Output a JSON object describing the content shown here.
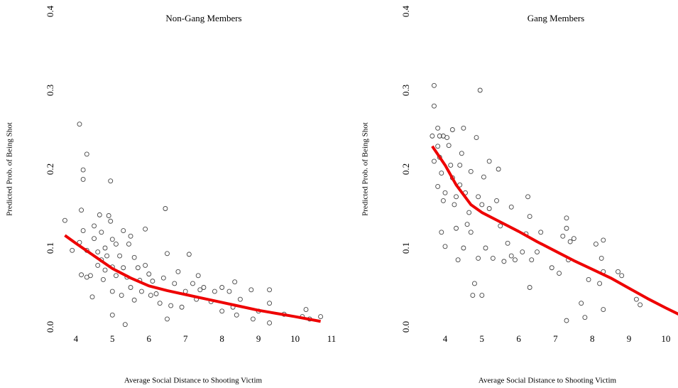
{
  "chart_data": [
    {
      "type": "scatter",
      "title": "Non-Gang Members",
      "xlabel": "Average Social Distance to Shooting Victim",
      "ylabel": "Predicted Prob. of Being Shot",
      "xlim": [
        3.42,
        10.98
      ],
      "ylim": [
        0,
        0.4
      ],
      "xticks": [
        4,
        5,
        6,
        7,
        8,
        9,
        10,
        11
      ],
      "yticks": [
        {
          "value": 0,
          "label": "0.0"
        },
        0.1,
        0.2,
        0.3,
        0.4
      ],
      "grid": false,
      "series": [
        {
          "style": "points",
          "color": "#444444",
          "x": [
            3.7,
            3.9,
            4.1,
            4.15,
            4.2,
            4.2,
            4.3,
            4.1,
            4.2,
            4.3,
            4.15,
            4.3,
            4.4,
            4.45,
            4.5,
            4.5,
            4.6,
            4.6,
            4.65,
            4.7,
            4.7,
            4.75,
            4.8,
            4.8,
            4.85,
            4.9,
            4.95,
            4.95,
            5.0,
            5.0,
            5.0,
            5.0,
            5.1,
            5.1,
            5.2,
            5.25,
            5.3,
            5.3,
            5.35,
            5.4,
            5.45,
            5.5,
            5.5,
            5.6,
            5.6,
            5.7,
            5.75,
            5.8,
            5.9,
            5.9,
            6.0,
            6.05,
            6.1,
            6.2,
            6.3,
            6.4,
            6.45,
            6.5,
            6.5,
            6.6,
            6.7,
            6.8,
            6.9,
            7.0,
            7.1,
            7.2,
            7.3,
            7.35,
            7.4,
            7.5,
            7.7,
            7.8,
            8.0,
            8.0,
            8.2,
            8.3,
            8.35,
            8.4,
            8.5,
            8.8,
            8.85,
            9.0,
            9.3,
            9.3,
            9.3,
            9.7,
            10.2,
            10.3,
            10.4,
            10.7
          ],
          "values": [
            0.135,
            0.097,
            0.257,
            0.148,
            0.199,
            0.187,
            0.219,
            0.107,
            0.122,
            0.097,
            0.066,
            0.063,
            0.065,
            0.038,
            0.128,
            0.112,
            0.095,
            0.078,
            0.142,
            0.12,
            0.085,
            0.06,
            0.1,
            0.072,
            0.09,
            0.141,
            0.185,
            0.134,
            0.111,
            0.076,
            0.045,
            0.015,
            0.105,
            0.065,
            0.09,
            0.04,
            0.122,
            0.075,
            0.003,
            0.063,
            0.105,
            0.115,
            0.05,
            0.088,
            0.034,
            0.075,
            0.059,
            0.045,
            0.124,
            0.078,
            0.067,
            0.04,
            0.058,
            0.042,
            0.03,
            0.062,
            0.15,
            0.093,
            0.01,
            0.027,
            0.055,
            0.07,
            0.025,
            0.045,
            0.092,
            0.055,
            0.035,
            0.065,
            0.047,
            0.05,
            0.032,
            0.045,
            0.05,
            0.02,
            0.045,
            0.025,
            0.057,
            0.015,
            0.035,
            0.047,
            0.01,
            0.02,
            0.047,
            0.03,
            0.005,
            0.016,
            0.013,
            0.022,
            0.01,
            0.013
          ]
        },
        {
          "style": "line",
          "color": "#ee0000",
          "x": [
            3.7,
            4,
            4.5,
            5,
            5.5,
            6,
            6.5,
            7,
            7.5,
            8,
            8.5,
            9,
            9.5,
            10,
            10.7
          ],
          "values": [
            0.116,
            0.106,
            0.09,
            0.074,
            0.062,
            0.052,
            0.046,
            0.041,
            0.036,
            0.031,
            0.026,
            0.021,
            0.017,
            0.013,
            0.007
          ]
        }
      ]
    },
    {
      "type": "scatter",
      "title": "Gang Members",
      "xlabel": "Average Social Distance to Shooting Victim",
      "ylabel": "Predicted Prob. of Being Shot",
      "xlim": [
        3.45,
        10.35
      ],
      "ylim": [
        0,
        0.4
      ],
      "xticks": [
        4,
        5,
        6,
        7,
        8,
        9,
        10
      ],
      "yticks": [
        {
          "value": 0,
          "label": "0.0"
        },
        0.1,
        0.2,
        0.3,
        0.4
      ],
      "grid": false,
      "series": [
        {
          "style": "points",
          "color": "#444444",
          "x": [
            3.65,
            3.7,
            3.8,
            3.85,
            3.95,
            3.7,
            3.7,
            3.8,
            3.8,
            3.85,
            3.9,
            3.95,
            3.9,
            4.0,
            4.0,
            4.05,
            4.1,
            4.15,
            4.2,
            4.2,
            4.25,
            4.3,
            4.3,
            4.35,
            4.4,
            4.4,
            4.45,
            4.5,
            4.5,
            4.55,
            4.6,
            4.65,
            4.7,
            4.7,
            4.75,
            4.8,
            4.85,
            4.9,
            4.9,
            4.95,
            5.0,
            5.0,
            5.05,
            5.1,
            5.2,
            5.2,
            5.3,
            5.4,
            5.45,
            5.5,
            5.6,
            5.7,
            5.8,
            5.8,
            5.9,
            6.1,
            6.2,
            6.25,
            6.3,
            6.3,
            6.35,
            6.5,
            6.6,
            6.9,
            7.1,
            7.2,
            7.3,
            7.3,
            7.35,
            7.3,
            7.4,
            7.5,
            7.7,
            7.8,
            7.9,
            8.1,
            8.2,
            8.25,
            8.3,
            8.3,
            8.3,
            8.7,
            8.8,
            9.2,
            9.3
          ],
          "values": [
            0.242,
            0.21,
            0.178,
            0.242,
            0.242,
            0.306,
            0.28,
            0.252,
            0.229,
            0.215,
            0.195,
            0.16,
            0.12,
            0.102,
            0.17,
            0.24,
            0.23,
            0.205,
            0.25,
            0.189,
            0.155,
            0.165,
            0.125,
            0.085,
            0.205,
            0.18,
            0.22,
            0.252,
            0.1,
            0.17,
            0.13,
            0.145,
            0.197,
            0.12,
            0.04,
            0.055,
            0.24,
            0.165,
            0.087,
            0.3,
            0.155,
            0.04,
            0.19,
            0.1,
            0.21,
            0.15,
            0.087,
            0.16,
            0.2,
            0.128,
            0.083,
            0.106,
            0.152,
            0.09,
            0.085,
            0.095,
            0.118,
            0.165,
            0.14,
            0.05,
            0.085,
            0.095,
            0.12,
            0.075,
            0.068,
            0.115,
            0.138,
            0.125,
            0.085,
            0.008,
            0.108,
            0.112,
            0.03,
            0.012,
            0.06,
            0.105,
            0.055,
            0.087,
            0.11,
            0.07,
            0.022,
            0.07,
            0.065,
            0.035,
            0.028
          ]
        },
        {
          "style": "line",
          "color": "#ee0000",
          "x": [
            3.65,
            4,
            4.3,
            4.7,
            5,
            5.5,
            6,
            6.5,
            7,
            7.5,
            8,
            8.5,
            9,
            9.5,
            10,
            10.35
          ],
          "values": [
            0.229,
            0.205,
            0.18,
            0.155,
            0.145,
            0.133,
            0.121,
            0.108,
            0.096,
            0.084,
            0.073,
            0.062,
            0.049,
            0.036,
            0.024,
            0.016
          ]
        }
      ]
    }
  ]
}
